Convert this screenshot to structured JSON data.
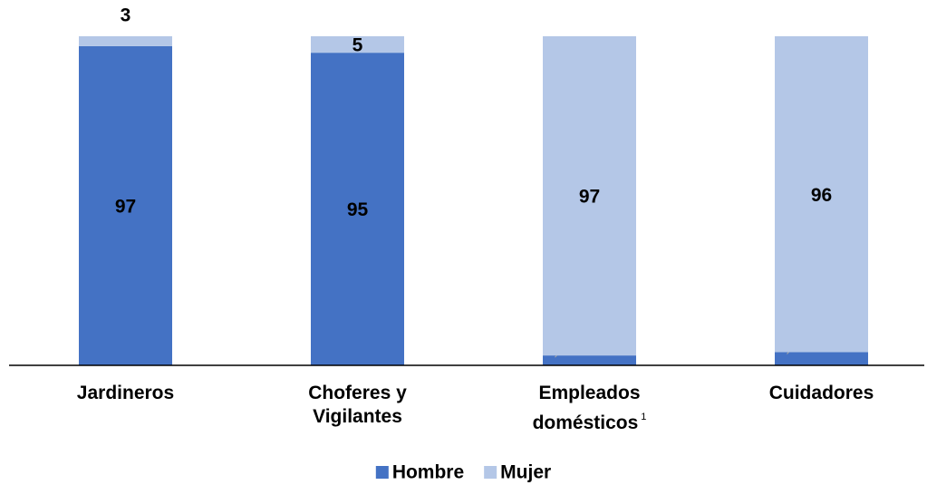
{
  "chart_data": {
    "type": "stacked_bar",
    "categories": [
      "Jardineros",
      "Choferes y Vigilantes",
      "Empleados domésticos",
      "Cuidadores"
    ],
    "footnote_marks": [
      null,
      null,
      "1",
      null
    ],
    "series": [
      {
        "name": "Hombre",
        "color": "#4472c4",
        "values": [
          97,
          95,
          3,
          4
        ]
      },
      {
        "name": "Mujer",
        "color": "#b4c7e7",
        "values": [
          3,
          5,
          97,
          96
        ]
      }
    ],
    "ylim": [
      0,
      100
    ],
    "legend": "bottom"
  }
}
